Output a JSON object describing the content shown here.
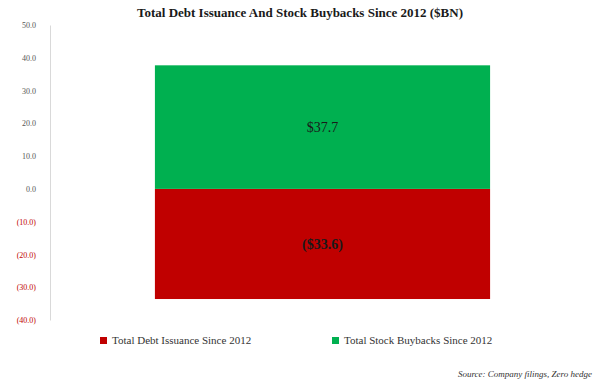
{
  "chart_data": {
    "type": "bar",
    "title": "Total Debt Issuance And Stock Buybacks Since 2012 ($BN)",
    "categories": [
      null
    ],
    "series": [
      {
        "name": "Total Debt Issuance Since 2012",
        "color": "#c00000",
        "values": [
          -33.6
        ],
        "value_labels": [
          "($33.6)"
        ]
      },
      {
        "name": "Total Stock Buybacks Since 2012",
        "color": "#00b050",
        "values": [
          37.7
        ],
        "value_labels": [
          "$37.7"
        ]
      }
    ],
    "ylim": [
      -40,
      50
    ],
    "yticks": [
      {
        "value": 50,
        "label": "50.0"
      },
      {
        "value": 40,
        "label": "40.0"
      },
      {
        "value": 30,
        "label": "30.0"
      },
      {
        "value": 20,
        "label": "20.0"
      },
      {
        "value": 10,
        "label": "10.0"
      },
      {
        "value": 0,
        "label": "0.0"
      },
      {
        "value": -10,
        "label": "(10.0)"
      },
      {
        "value": -20,
        "label": "(20.0)"
      },
      {
        "value": -30,
        "label": "(30.0)"
      },
      {
        "value": -40,
        "label": "(40.0)"
      }
    ],
    "stacked": true,
    "data_labels": true,
    "grid": false,
    "legend": "bottom",
    "annotations": [
      "Source: Company filings, Zero hedge"
    ]
  }
}
